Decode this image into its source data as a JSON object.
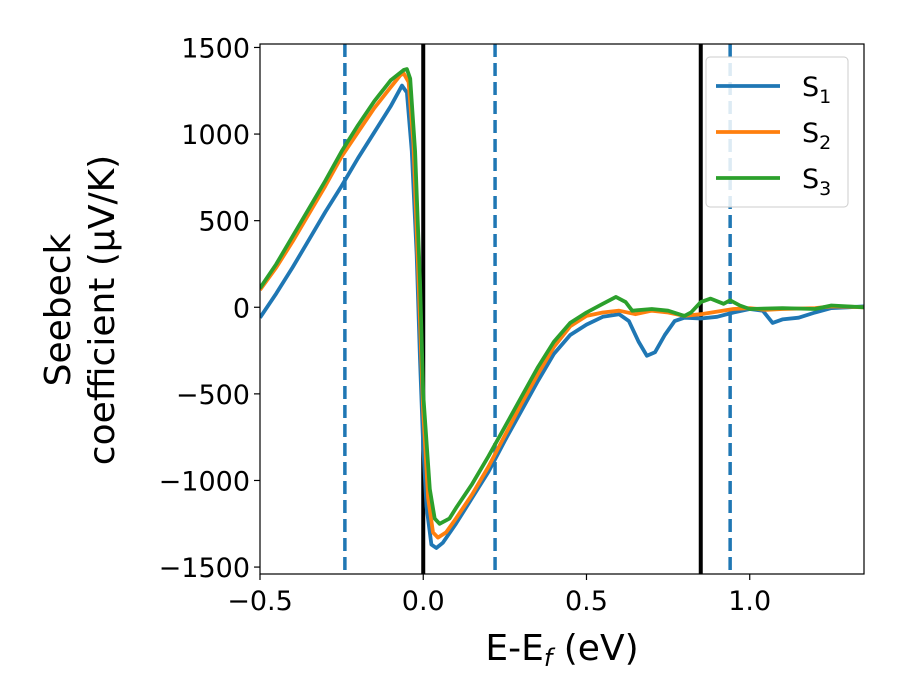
{
  "chart_data": {
    "type": "line",
    "xlabel": "E-E_f (eV)",
    "xlabel_parts": {
      "main": "E-E",
      "sub": "f",
      "rest": " (eV)"
    },
    "ylabel": "Seebeck coefficient (µV/K)",
    "ylabel_lines": [
      "Seebeck",
      "coefficient  (µV/K)"
    ],
    "xlim": [
      -0.5,
      1.35
    ],
    "ylim": [
      -1540,
      1520
    ],
    "xticks": [
      {
        "value": -0.5,
        "label": "−0.5"
      },
      {
        "value": 0.0,
        "label": "0.0"
      },
      {
        "value": 0.5,
        "label": "0.5"
      },
      {
        "value": 1.0,
        "label": "1.0"
      }
    ],
    "yticks": [
      {
        "value": 1500,
        "label": "1500"
      },
      {
        "value": 1000,
        "label": "1000"
      },
      {
        "value": 500,
        "label": "500"
      },
      {
        "value": 0,
        "label": "0"
      },
      {
        "value": -500,
        "label": "−500"
      },
      {
        "value": -1000,
        "label": "−1000"
      },
      {
        "value": -1500,
        "label": "−1500"
      }
    ],
    "grid": false,
    "legend_position": "top-right",
    "vlines": [
      {
        "x": -0.24,
        "style": "dashed",
        "color": "#1f77b4"
      },
      {
        "x": 0.0,
        "style": "solid",
        "color": "#000000"
      },
      {
        "x": 0.22,
        "style": "dashed",
        "color": "#1f77b4"
      },
      {
        "x": 0.85,
        "style": "solid",
        "color": "#000000"
      },
      {
        "x": 0.94,
        "style": "dashed",
        "color": "#1f77b4"
      }
    ],
    "series": [
      {
        "name": "S_1",
        "legend_main": "S",
        "legend_sub": "1",
        "color": "#1f77b4",
        "points": [
          [
            -0.5,
            -60
          ],
          [
            -0.45,
            80
          ],
          [
            -0.4,
            230
          ],
          [
            -0.35,
            390
          ],
          [
            -0.3,
            550
          ],
          [
            -0.25,
            700
          ],
          [
            -0.2,
            860
          ],
          [
            -0.15,
            1010
          ],
          [
            -0.1,
            1160
          ],
          [
            -0.065,
            1280
          ],
          [
            -0.05,
            1240
          ],
          [
            -0.035,
            900
          ],
          [
            -0.02,
            300
          ],
          [
            -0.01,
            -300
          ],
          [
            0.0,
            -800
          ],
          [
            0.01,
            -1150
          ],
          [
            0.025,
            -1370
          ],
          [
            0.04,
            -1390
          ],
          [
            0.06,
            -1360
          ],
          [
            0.1,
            -1250
          ],
          [
            0.15,
            -1100
          ],
          [
            0.2,
            -950
          ],
          [
            0.25,
            -770
          ],
          [
            0.3,
            -600
          ],
          [
            0.35,
            -430
          ],
          [
            0.4,
            -270
          ],
          [
            0.45,
            -160
          ],
          [
            0.5,
            -100
          ],
          [
            0.55,
            -55
          ],
          [
            0.6,
            -40
          ],
          [
            0.63,
            -80
          ],
          [
            0.66,
            -200
          ],
          [
            0.685,
            -280
          ],
          [
            0.71,
            -260
          ],
          [
            0.74,
            -160
          ],
          [
            0.77,
            -80
          ],
          [
            0.8,
            -60
          ],
          [
            0.85,
            -65
          ],
          [
            0.9,
            -55
          ],
          [
            0.95,
            -30
          ],
          [
            1.0,
            -10
          ],
          [
            1.04,
            -20
          ],
          [
            1.07,
            -90
          ],
          [
            1.1,
            -70
          ],
          [
            1.15,
            -60
          ],
          [
            1.2,
            -30
          ],
          [
            1.25,
            -5
          ],
          [
            1.3,
            0
          ],
          [
            1.35,
            5
          ]
        ]
      },
      {
        "name": "S_2",
        "legend_main": "S",
        "legend_sub": "2",
        "color": "#ff7f0e",
        "points": [
          [
            -0.5,
            100
          ],
          [
            -0.45,
            230
          ],
          [
            -0.4,
            380
          ],
          [
            -0.35,
            540
          ],
          [
            -0.3,
            700
          ],
          [
            -0.25,
            870
          ],
          [
            -0.2,
            1010
          ],
          [
            -0.15,
            1150
          ],
          [
            -0.1,
            1270
          ],
          [
            -0.07,
            1340
          ],
          [
            -0.06,
            1350
          ],
          [
            -0.045,
            1300
          ],
          [
            -0.03,
            950
          ],
          [
            -0.015,
            200
          ],
          [
            0.0,
            -600
          ],
          [
            0.015,
            -1100
          ],
          [
            0.03,
            -1300
          ],
          [
            0.045,
            -1330
          ],
          [
            0.07,
            -1300
          ],
          [
            0.1,
            -1220
          ],
          [
            0.15,
            -1080
          ],
          [
            0.2,
            -920
          ],
          [
            0.25,
            -740
          ],
          [
            0.3,
            -560
          ],
          [
            0.35,
            -390
          ],
          [
            0.4,
            -230
          ],
          [
            0.45,
            -110
          ],
          [
            0.5,
            -50
          ],
          [
            0.55,
            -30
          ],
          [
            0.6,
            -20
          ],
          [
            0.65,
            -40
          ],
          [
            0.7,
            -20
          ],
          [
            0.75,
            -30
          ],
          [
            0.8,
            -50
          ],
          [
            0.85,
            -40
          ],
          [
            0.9,
            -25
          ],
          [
            0.95,
            -10
          ],
          [
            1.0,
            -5
          ],
          [
            1.05,
            -15
          ],
          [
            1.1,
            -10
          ],
          [
            1.2,
            -5
          ],
          [
            1.25,
            5
          ],
          [
            1.3,
            3
          ],
          [
            1.35,
            0
          ]
        ]
      },
      {
        "name": "S_3",
        "legend_main": "S",
        "legend_sub": "3",
        "color": "#2ca02c",
        "points": [
          [
            -0.5,
            110
          ],
          [
            -0.45,
            250
          ],
          [
            -0.4,
            410
          ],
          [
            -0.35,
            570
          ],
          [
            -0.3,
            730
          ],
          [
            -0.25,
            900
          ],
          [
            -0.2,
            1050
          ],
          [
            -0.15,
            1190
          ],
          [
            -0.1,
            1310
          ],
          [
            -0.06,
            1370
          ],
          [
            -0.05,
            1375
          ],
          [
            -0.04,
            1320
          ],
          [
            -0.025,
            900
          ],
          [
            -0.01,
            150
          ],
          [
            0.0,
            -500
          ],
          [
            0.02,
            -1050
          ],
          [
            0.035,
            -1220
          ],
          [
            0.05,
            -1250
          ],
          [
            0.08,
            -1220
          ],
          [
            0.1,
            -1160
          ],
          [
            0.15,
            -1020
          ],
          [
            0.2,
            -860
          ],
          [
            0.25,
            -690
          ],
          [
            0.3,
            -520
          ],
          [
            0.35,
            -350
          ],
          [
            0.4,
            -200
          ],
          [
            0.45,
            -90
          ],
          [
            0.5,
            -30
          ],
          [
            0.55,
            20
          ],
          [
            0.59,
            60
          ],
          [
            0.62,
            30
          ],
          [
            0.64,
            -20
          ],
          [
            0.7,
            -10
          ],
          [
            0.75,
            -20
          ],
          [
            0.8,
            -50
          ],
          [
            0.82,
            -30
          ],
          [
            0.85,
            30
          ],
          [
            0.88,
            50
          ],
          [
            0.92,
            20
          ],
          [
            0.94,
            40
          ],
          [
            0.97,
            10
          ],
          [
            1.0,
            -10
          ],
          [
            1.1,
            -5
          ],
          [
            1.2,
            -10
          ],
          [
            1.25,
            10
          ],
          [
            1.3,
            5
          ],
          [
            1.35,
            0
          ]
        ]
      }
    ]
  }
}
